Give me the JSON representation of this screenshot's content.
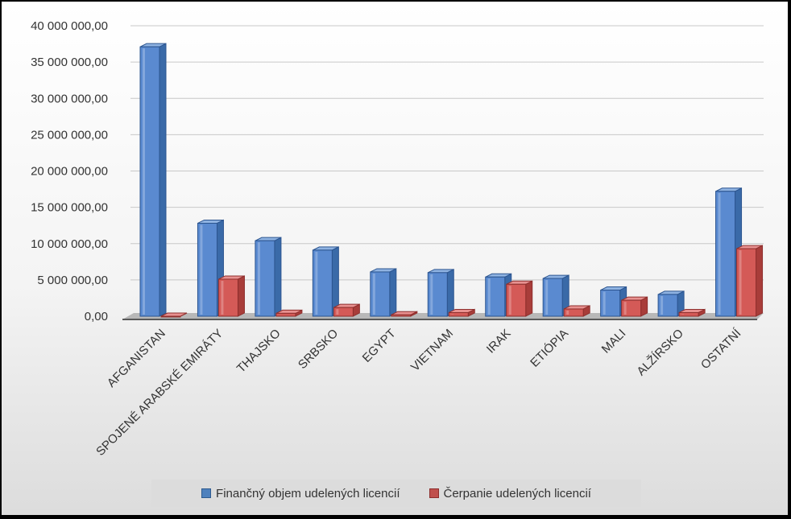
{
  "chart_data": {
    "type": "bar",
    "categories": [
      "AFGANISTAN",
      "SPOJENÉ ARABSKÉ EMIRÁTY",
      "THAJSKO",
      "SRBSKO",
      "EGYPT",
      "VIETNAM",
      "IRAK",
      "ETIÓPIA",
      "MALI",
      "ALŽÍRSKO",
      "OSTATNÍ"
    ],
    "series": [
      {
        "name": "Finančný objem udelených licencií",
        "color": "#4f81bd",
        "values": [
          37100000,
          12800000,
          10400000,
          9100000,
          6100000,
          6000000,
          5400000,
          5200000,
          3600000,
          3000000,
          17200000
        ]
      },
      {
        "name": "Čerpanie udelených licencií",
        "color": "#c0504d",
        "values": [
          0,
          5100000,
          400000,
          1200000,
          200000,
          500000,
          4400000,
          1000000,
          2200000,
          500000,
          9300000
        ]
      }
    ],
    "y_ticks": [
      "0,00",
      "5 000 000,00",
      "10 000 000,00",
      "15 000 000,00",
      "20 000 000,00",
      "25 000 000,00",
      "30 000 000,00",
      "35 000 000,00",
      "40 000 000,00"
    ],
    "ylim": [
      0,
      40000000
    ],
    "grid": true,
    "legend_position": "bottom",
    "title": "",
    "xlabel": "",
    "ylabel": ""
  }
}
